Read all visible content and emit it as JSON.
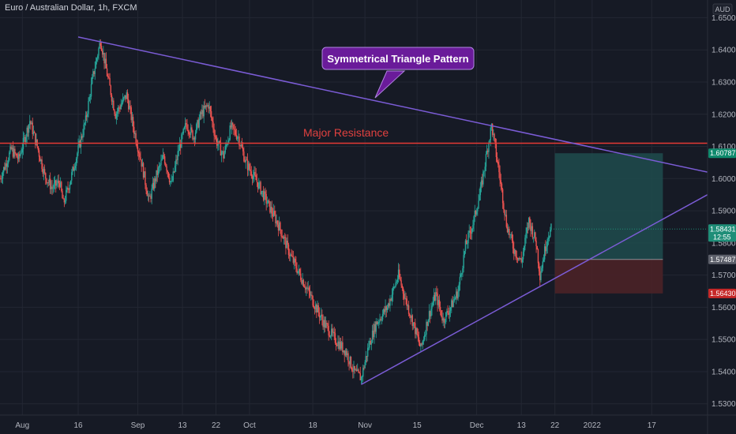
{
  "header": {
    "symbol_title": "Euro / Australian Dollar, 1h, FXCM"
  },
  "currency_badge": "AUD",
  "annotations": {
    "callout": "Symmetrical Triangle Pattern",
    "resistance_label": "Major Resistance"
  },
  "colors": {
    "up": "#26a69a",
    "down": "#ef5350",
    "trendline": "#7b5cd6",
    "resistance": "#e53935",
    "callout_bg": "#6a1b9a",
    "profit_zone": "#1f4c4d",
    "loss_zone": "#4a2227",
    "tag_green": "#0f8a6d",
    "tag_price": "#1f8e78",
    "tag_entry": "#5d606b",
    "tag_red": "#c62828"
  },
  "chart_data": {
    "type": "candlestick",
    "title": "Euro / Australian Dollar, 1h, FXCM",
    "x_tick_labels": [
      "Aug",
      "16",
      "Sep",
      "13",
      "22",
      "Oct",
      "18",
      "Nov",
      "15",
      "Dec",
      "13",
      "22",
      "2022",
      "17"
    ],
    "x_tick_days": [
      0,
      15,
      31,
      43,
      52,
      61,
      78,
      92,
      106,
      122,
      134,
      143,
      153,
      169
    ],
    "y_tick_labels": [
      "1.65000",
      "1.64000",
      "1.63000",
      "1.62000",
      "1.61000",
      "1.60000",
      "1.59000",
      "1.58000",
      "1.57000",
      "1.56000",
      "1.55000",
      "1.54000",
      "1.53000"
    ],
    "y_ticks": [
      1.65,
      1.64,
      1.63,
      1.62,
      1.61,
      1.6,
      1.59,
      1.58,
      1.57,
      1.56,
      1.55,
      1.54,
      1.53
    ],
    "ylim": [
      1.5265,
      1.6555
    ],
    "xlim_days": [
      -6,
      184
    ],
    "price_path": [
      [
        -6,
        1.6
      ],
      [
        -3,
        1.609
      ],
      [
        -1,
        1.606
      ],
      [
        1,
        1.614
      ],
      [
        2,
        1.618
      ],
      [
        4,
        1.61
      ],
      [
        6,
        1.601
      ],
      [
        8,
        1.597
      ],
      [
        10,
        1.599
      ],
      [
        11,
        1.592
      ],
      [
        13,
        1.6
      ],
      [
        15,
        1.609
      ],
      [
        17,
        1.618
      ],
      [
        19,
        1.632
      ],
      [
        21,
        1.643
      ],
      [
        23,
        1.631
      ],
      [
        25,
        1.62
      ],
      [
        28,
        1.626
      ],
      [
        30,
        1.615
      ],
      [
        32,
        1.605
      ],
      [
        34,
        1.593
      ],
      [
        36,
        1.601
      ],
      [
        38,
        1.607
      ],
      [
        40,
        1.598
      ],
      [
        42,
        1.609
      ],
      [
        44,
        1.617
      ],
      [
        46,
        1.613
      ],
      [
        48,
        1.62
      ],
      [
        50,
        1.623
      ],
      [
        52,
        1.612
      ],
      [
        54,
        1.607
      ],
      [
        56,
        1.616
      ],
      [
        58,
        1.613
      ],
      [
        60,
        1.605
      ],
      [
        63,
        1.599
      ],
      [
        66,
        1.592
      ],
      [
        69,
        1.585
      ],
      [
        72,
        1.576
      ],
      [
        75,
        1.569
      ],
      [
        78,
        1.562
      ],
      [
        81,
        1.555
      ],
      [
        84,
        1.55
      ],
      [
        87,
        1.546
      ],
      [
        89,
        1.54
      ],
      [
        91,
        1.538
      ],
      [
        93,
        1.548
      ],
      [
        95,
        1.555
      ],
      [
        98,
        1.56
      ],
      [
        101,
        1.57
      ],
      [
        103,
        1.562
      ],
      [
        105,
        1.555
      ],
      [
        107,
        1.547
      ],
      [
        109,
        1.557
      ],
      [
        111,
        1.564
      ],
      [
        113,
        1.556
      ],
      [
        115,
        1.56
      ],
      [
        117,
        1.565
      ],
      [
        119,
        1.579
      ],
      [
        121,
        1.586
      ],
      [
        123,
        1.596
      ],
      [
        125,
        1.61
      ],
      [
        126,
        1.6165
      ],
      [
        128,
        1.602
      ],
      [
        130,
        1.586
      ],
      [
        132,
        1.578
      ],
      [
        134,
        1.574
      ],
      [
        136,
        1.587
      ],
      [
        138,
        1.58
      ],
      [
        139,
        1.57
      ],
      [
        140,
        1.576
      ],
      [
        141,
        1.582
      ],
      [
        142,
        1.5843
      ]
    ],
    "trendlines": [
      {
        "name": "upper",
        "from": [
          15,
          1.644
        ],
        "to": [
          184,
          1.602
        ]
      },
      {
        "name": "lower",
        "from": [
          91,
          1.536
        ],
        "to": [
          184,
          1.595
        ]
      }
    ],
    "resistance_level": 1.611,
    "position": {
      "start_day": 143,
      "end_day": 172,
      "target": 1.60787,
      "entry": 1.57487,
      "stop": 1.5643
    },
    "price_tags": [
      {
        "value": "1.60787",
        "level": 1.60787,
        "color_key": "tag_green"
      },
      {
        "value": "1.58431",
        "level": 1.58431,
        "color_key": "tag_price",
        "sub": "12:55"
      },
      {
        "value": "1.57487",
        "level": 1.57487,
        "color_key": "tag_entry"
      },
      {
        "value": "1.56430",
        "level": 1.5643,
        "color_key": "tag_red"
      }
    ],
    "last_price": 1.58431
  }
}
